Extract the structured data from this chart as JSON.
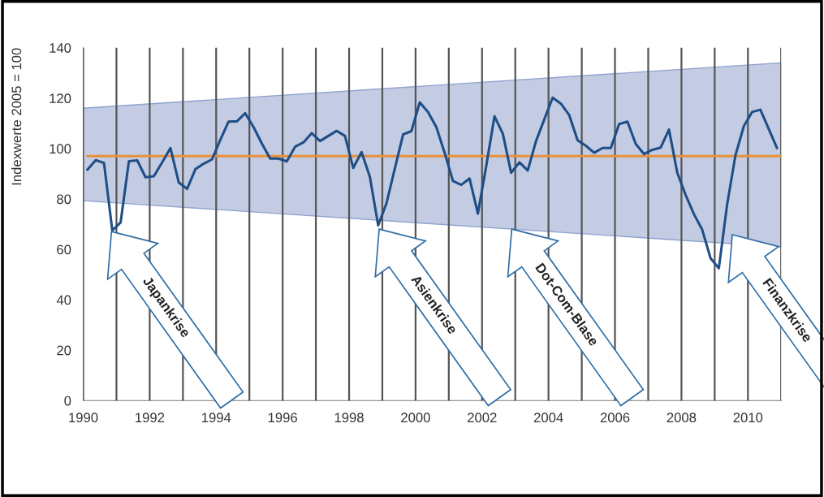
{
  "chart_data": {
    "type": "line",
    "ylabel": "Indexwerte 2005 = 100",
    "xlim": [
      1990,
      2011
    ],
    "ylim": [
      0,
      140
    ],
    "xticks": [
      1990,
      {
        "value": 1991,
        "label": null
      },
      1992,
      {
        "value": 1993,
        "label": null
      },
      1994,
      {
        "value": 1995,
        "label": null
      },
      1996,
      {
        "value": 1997,
        "label": null
      },
      1998,
      {
        "value": 1999,
        "label": null
      },
      2000,
      {
        "value": 2001,
        "label": null
      },
      2002,
      {
        "value": 2003,
        "label": null
      },
      2004,
      {
        "value": 2005,
        "label": null
      },
      2006,
      {
        "value": 2007,
        "label": null
      },
      2008,
      {
        "value": 2009,
        "label": null
      },
      2010,
      {
        "value": 2011,
        "label": null
      }
    ],
    "yticks": [
      0,
      20,
      40,
      60,
      80,
      100,
      120,
      140
    ],
    "grid": "x",
    "marker": "none",
    "line_style": "solid",
    "series": [
      {
        "type": "area",
        "color": "#c3cce3",
        "x": [
          1990,
          2011
        ],
        "values": [
          null,
          null
        ],
        "lower": [
          79.3,
          61
        ],
        "upper": [
          116,
          134
        ]
      },
      {
        "type": "line",
        "color": "#e8913a",
        "x": [
          1990.125,
          2011
        ],
        "values": [
          97,
          97
        ]
      },
      {
        "color": "#1f4e87",
        "x": [
          1990.125,
          1990.375,
          1990.625,
          1990.875,
          1991.125,
          1991.375,
          1991.625,
          1991.875,
          1992.125,
          1992.375,
          1992.625,
          1992.875,
          1993.125,
          1993.375,
          1993.625,
          1993.875,
          1994.125,
          1994.375,
          1994.625,
          1994.875,
          1995.125,
          1995.375,
          1995.625,
          1995.875,
          1996.125,
          1996.375,
          1996.625,
          1996.875,
          1997.125,
          1997.375,
          1997.625,
          1997.875,
          1998.125,
          1998.375,
          1998.625,
          1998.875,
          1999.125,
          1999.375,
          1999.625,
          1999.875,
          2000.125,
          2000.375,
          2000.625,
          2000.875,
          2001.125,
          2001.375,
          2001.625,
          2001.875,
          2002.125,
          2002.375,
          2002.625,
          2002.875,
          2003.125,
          2003.375,
          2003.625,
          2003.875,
          2004.125,
          2004.375,
          2004.625,
          2004.875,
          2005.125,
          2005.375,
          2005.625,
          2005.875,
          2006.125,
          2006.375,
          2006.625,
          2006.875,
          2007.125,
          2007.375,
          2007.625,
          2007.875,
          2008.125,
          2008.375,
          2008.625,
          2008.875,
          2009.125,
          2009.375,
          2009.625,
          2009.875,
          2010.125,
          2010.375,
          2010.625,
          2010.875
        ],
        "values": [
          91.6,
          95.4,
          94.3,
          67.5,
          70.7,
          95,
          95.3,
          88.6,
          89,
          94.5,
          100.2,
          86.5,
          84,
          91.8,
          94,
          95.7,
          103.5,
          110.7,
          110.8,
          114,
          108.5,
          102,
          96,
          96,
          94.9,
          100.7,
          102.4,
          106.1,
          103,
          105,
          107,
          105,
          92.3,
          98.6,
          88.8,
          69.5,
          78.3,
          92,
          105.6,
          106.9,
          118.3,
          114.5,
          108.5,
          98.3,
          87.1,
          85.6,
          88.1,
          74.2,
          93,
          112.8,
          105.9,
          90.4,
          94.5,
          91.3,
          103,
          111.6,
          120.2,
          117.8,
          113.2,
          103.3,
          101.1,
          98.3,
          100.2,
          100.2,
          109.7,
          110.7,
          101.8,
          97.8,
          99.5,
          100.4,
          107.5,
          90.4,
          81.6,
          74,
          67.8,
          56.5,
          52.5,
          77.8,
          97.3,
          108.8,
          114.5,
          115.4,
          107.8,
          100.2
        ]
      }
    ],
    "annotations": [
      "Japankrise",
      "Asienkrise",
      "Dot-Com-Blase",
      "Finanzkrise"
    ]
  }
}
